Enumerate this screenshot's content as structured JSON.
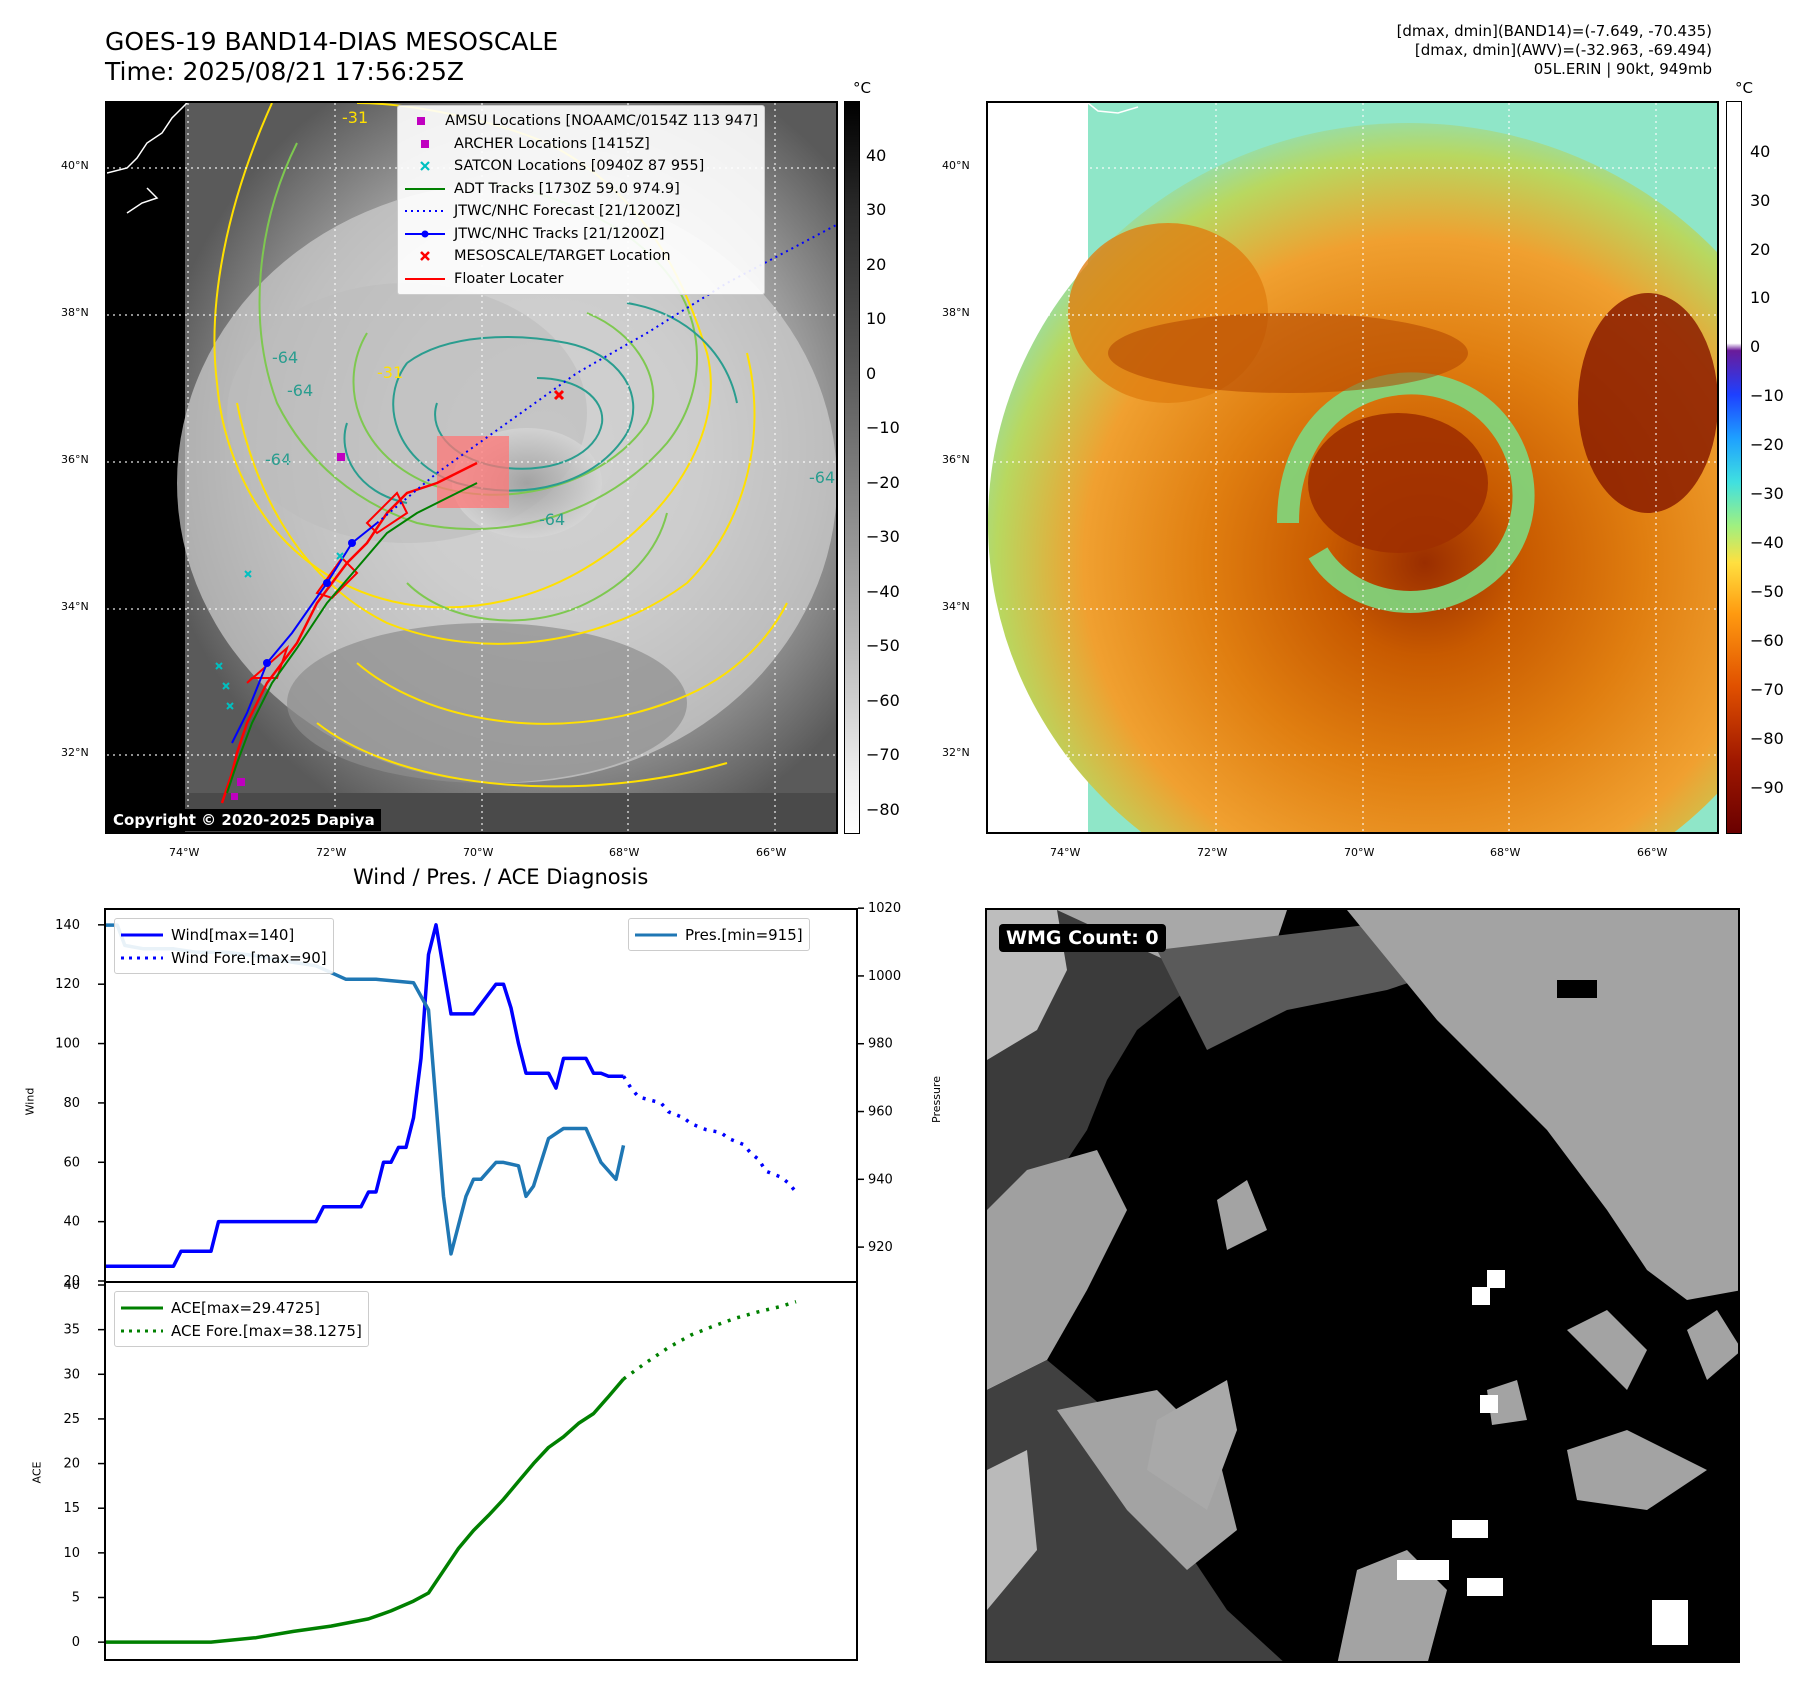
{
  "header": {
    "title_line1": "GOES-19 BAND14-DIAS MESOSCALE",
    "title_line2": "Time: 2025/08/21 17:56:25Z",
    "info_line1": "[dmax, dmin](BAND14)=(-7.649, -70.435)",
    "info_line2": "[dmax, dmin](AWV)=(-32.963, -69.494)",
    "info_line3": "05L.ERIN | 90kt, 949mb"
  },
  "colors": {
    "wind": "#0000ff",
    "pressure": "#1f77b4",
    "ace": "#008000",
    "track_red": "#ff0000",
    "jtwc_blue": "#0000ff",
    "adt_green": "#008000",
    "amsu_magenta": "#c000c0",
    "satcon_cyan": "#00c0c0"
  },
  "map_axes": {
    "lon_labels": [
      "74°W",
      "72°W",
      "70°W",
      "68°W",
      "66°W"
    ],
    "lat_labels": [
      "40°N",
      "38°N",
      "36°N",
      "34°N",
      "32°N"
    ],
    "contour_labels": [
      "-31",
      "-31",
      "-64",
      "-64",
      "-64",
      "-64",
      "-64"
    ]
  },
  "left_map": {
    "colorbar_unit": "°C",
    "colorbar_ticks": [
      "40",
      "30",
      "20",
      "10",
      "0",
      "−10",
      "−20",
      "−30",
      "−40",
      "−50",
      "−60",
      "−70",
      "−80"
    ],
    "copyright": "Copyright © 2020-2025 Dapiya",
    "legend": [
      {
        "label": "AMSU Locations [NOAAMC/0154Z 113 947]",
        "marker": "magenta-square"
      },
      {
        "label": "ARCHER Locations [1415Z]",
        "marker": "magenta-square"
      },
      {
        "label": "SATCON Locations [0940Z 87 955]",
        "marker": "cyan-x"
      },
      {
        "label": "ADT Tracks [1730Z 59.0 974.9]",
        "marker": "green-line"
      },
      {
        "label": "JTWC/NHC Forecast [21/1200Z]",
        "marker": "blue-dotted"
      },
      {
        "label": "JTWC/NHC Tracks [21/1200Z]",
        "marker": "blue-line-dot"
      },
      {
        "label": "MESOSCALE/TARGET Location",
        "marker": "red-x"
      },
      {
        "label": "Floater Locater",
        "marker": "red-line"
      }
    ]
  },
  "right_map": {
    "colorbar_unit": "°C",
    "colorbar_ticks": [
      "40",
      "30",
      "20",
      "10",
      "0",
      "−10",
      "−20",
      "−30",
      "−40",
      "−50",
      "−60",
      "−70",
      "−80",
      "−90"
    ]
  },
  "diagnosis": {
    "title": "Wind / Pres. / ACE Diagnosis",
    "wind_ylabel": "Wind",
    "pressure_ylabel": "Pressure",
    "ace_ylabel": "ACE"
  },
  "wmg": {
    "label": "WMG Count: 0"
  },
  "chart_data": [
    {
      "type": "line",
      "ylabel": "Wind",
      "ylabel_right": "Pressure",
      "ylim": [
        20,
        145
      ],
      "y_ticks": [
        20,
        40,
        60,
        80,
        100,
        120,
        140
      ],
      "pressure_ylim": [
        910,
        1020
      ],
      "pressure_ticks": [
        920,
        940,
        960,
        980,
        1000,
        1020
      ],
      "x_range": [
        0,
        100
      ],
      "series": [
        {
          "name": "Wind[max=140]",
          "axis": "left",
          "style": "solid",
          "x": [
            0,
            9,
            10,
            14,
            15,
            19,
            28,
            29,
            34,
            35,
            36,
            37,
            38,
            39,
            40,
            41,
            42,
            43,
            44,
            45,
            46,
            47,
            48,
            49,
            52,
            53,
            54,
            55,
            56,
            59,
            60,
            61,
            62,
            64,
            65,
            66,
            67,
            68,
            69
          ],
          "y": [
            25,
            25,
            30,
            30,
            40,
            40,
            40,
            45,
            45,
            50,
            50,
            60,
            60,
            65,
            65,
            75,
            95,
            130,
            140,
            125,
            110,
            110,
            110,
            110,
            120,
            120,
            112,
            100,
            90,
            90,
            85,
            95,
            95,
            95,
            90,
            90,
            89,
            89,
            89
          ]
        },
        {
          "name": "Wind Fore.[max=90]",
          "axis": "left",
          "style": "dotted",
          "x": [
            69,
            70,
            71,
            74,
            75,
            77,
            78,
            80,
            82,
            83,
            85,
            86,
            87,
            88,
            89,
            90,
            91,
            92
          ],
          "y": [
            89,
            85,
            82,
            80,
            77,
            75,
            73,
            71,
            70,
            68,
            66,
            63,
            61,
            57,
            56,
            55,
            53,
            50
          ]
        },
        {
          "name": "Pres.[min=915]",
          "axis": "right",
          "style": "solid",
          "x": [
            0,
            1.5,
            2.5,
            5,
            9,
            12,
            16,
            20,
            25,
            28,
            32,
            36,
            41,
            43,
            45,
            46,
            48,
            49,
            50,
            52,
            53,
            55,
            56,
            57,
            59,
            61,
            62,
            64,
            66,
            68,
            69
          ],
          "y": [
            1015,
            1015,
            1009,
            1008,
            1008,
            1007,
            1007,
            1006,
            1004,
            1003,
            999,
            999,
            998,
            990,
            935,
            918,
            935,
            940,
            940,
            945,
            945,
            944,
            935,
            938,
            952,
            955,
            955,
            955,
            945,
            940,
            950
          ]
        }
      ],
      "legend_labels": [
        "Wind[max=140]",
        "Wind Fore.[max=90]",
        "Pres.[min=915]"
      ]
    },
    {
      "type": "line",
      "ylabel": "ACE",
      "ylim": [
        -2,
        40
      ],
      "y_ticks": [
        0,
        5,
        10,
        15,
        20,
        25,
        30,
        35,
        40
      ],
      "x_range": [
        0,
        100
      ],
      "series": [
        {
          "name": "ACE[max=29.4725]",
          "style": "solid",
          "x": [
            0,
            10,
            14,
            20,
            25,
            30,
            35,
            38,
            41,
            43,
            45,
            47,
            49,
            51,
            53,
            55,
            57,
            59,
            61,
            63,
            65,
            67,
            69
          ],
          "y": [
            0,
            0,
            0,
            0.5,
            1.2,
            1.8,
            2.6,
            3.5,
            4.6,
            5.5,
            8,
            10.5,
            12.5,
            14.2,
            16,
            18,
            20,
            21.8,
            23,
            24.5,
            25.6,
            27.5,
            29.47
          ]
        },
        {
          "name": "ACE Fore.[max=38.1275]",
          "style": "dotted",
          "x": [
            69,
            72,
            75,
            78,
            81,
            84,
            87,
            90,
            92
          ],
          "y": [
            29.47,
            31.3,
            33,
            34.4,
            35.4,
            36.3,
            37,
            37.6,
            38.13
          ]
        }
      ],
      "legend_labels": [
        "ACE[max=29.4725]",
        "ACE Fore.[max=38.1275]"
      ]
    }
  ]
}
